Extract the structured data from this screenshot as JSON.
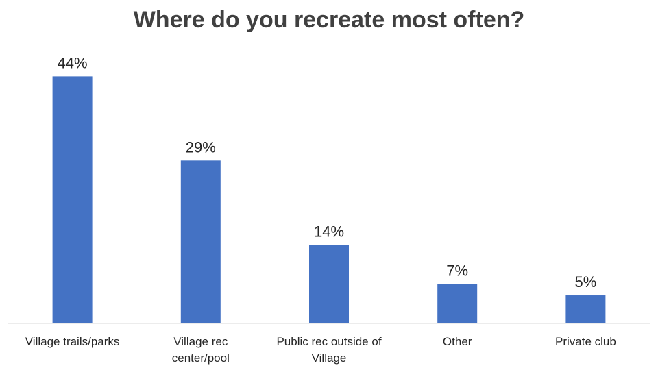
{
  "chart_data": {
    "type": "bar",
    "title": "Where do you recreate most often?",
    "categories": [
      [
        "Village trails/parks"
      ],
      [
        "Village rec",
        "center/pool"
      ],
      [
        "Public rec outside of",
        "Village"
      ],
      [
        "Other"
      ],
      [
        "Private club"
      ]
    ],
    "values": [
      44,
      29,
      14,
      7,
      5
    ],
    "value_labels": [
      "44%",
      "29%",
      "14%",
      "7%",
      "5%"
    ],
    "unit": "%",
    "ylim": [
      0,
      46
    ],
    "grid": false,
    "legend": "none",
    "bar_color": "#4472C4"
  }
}
